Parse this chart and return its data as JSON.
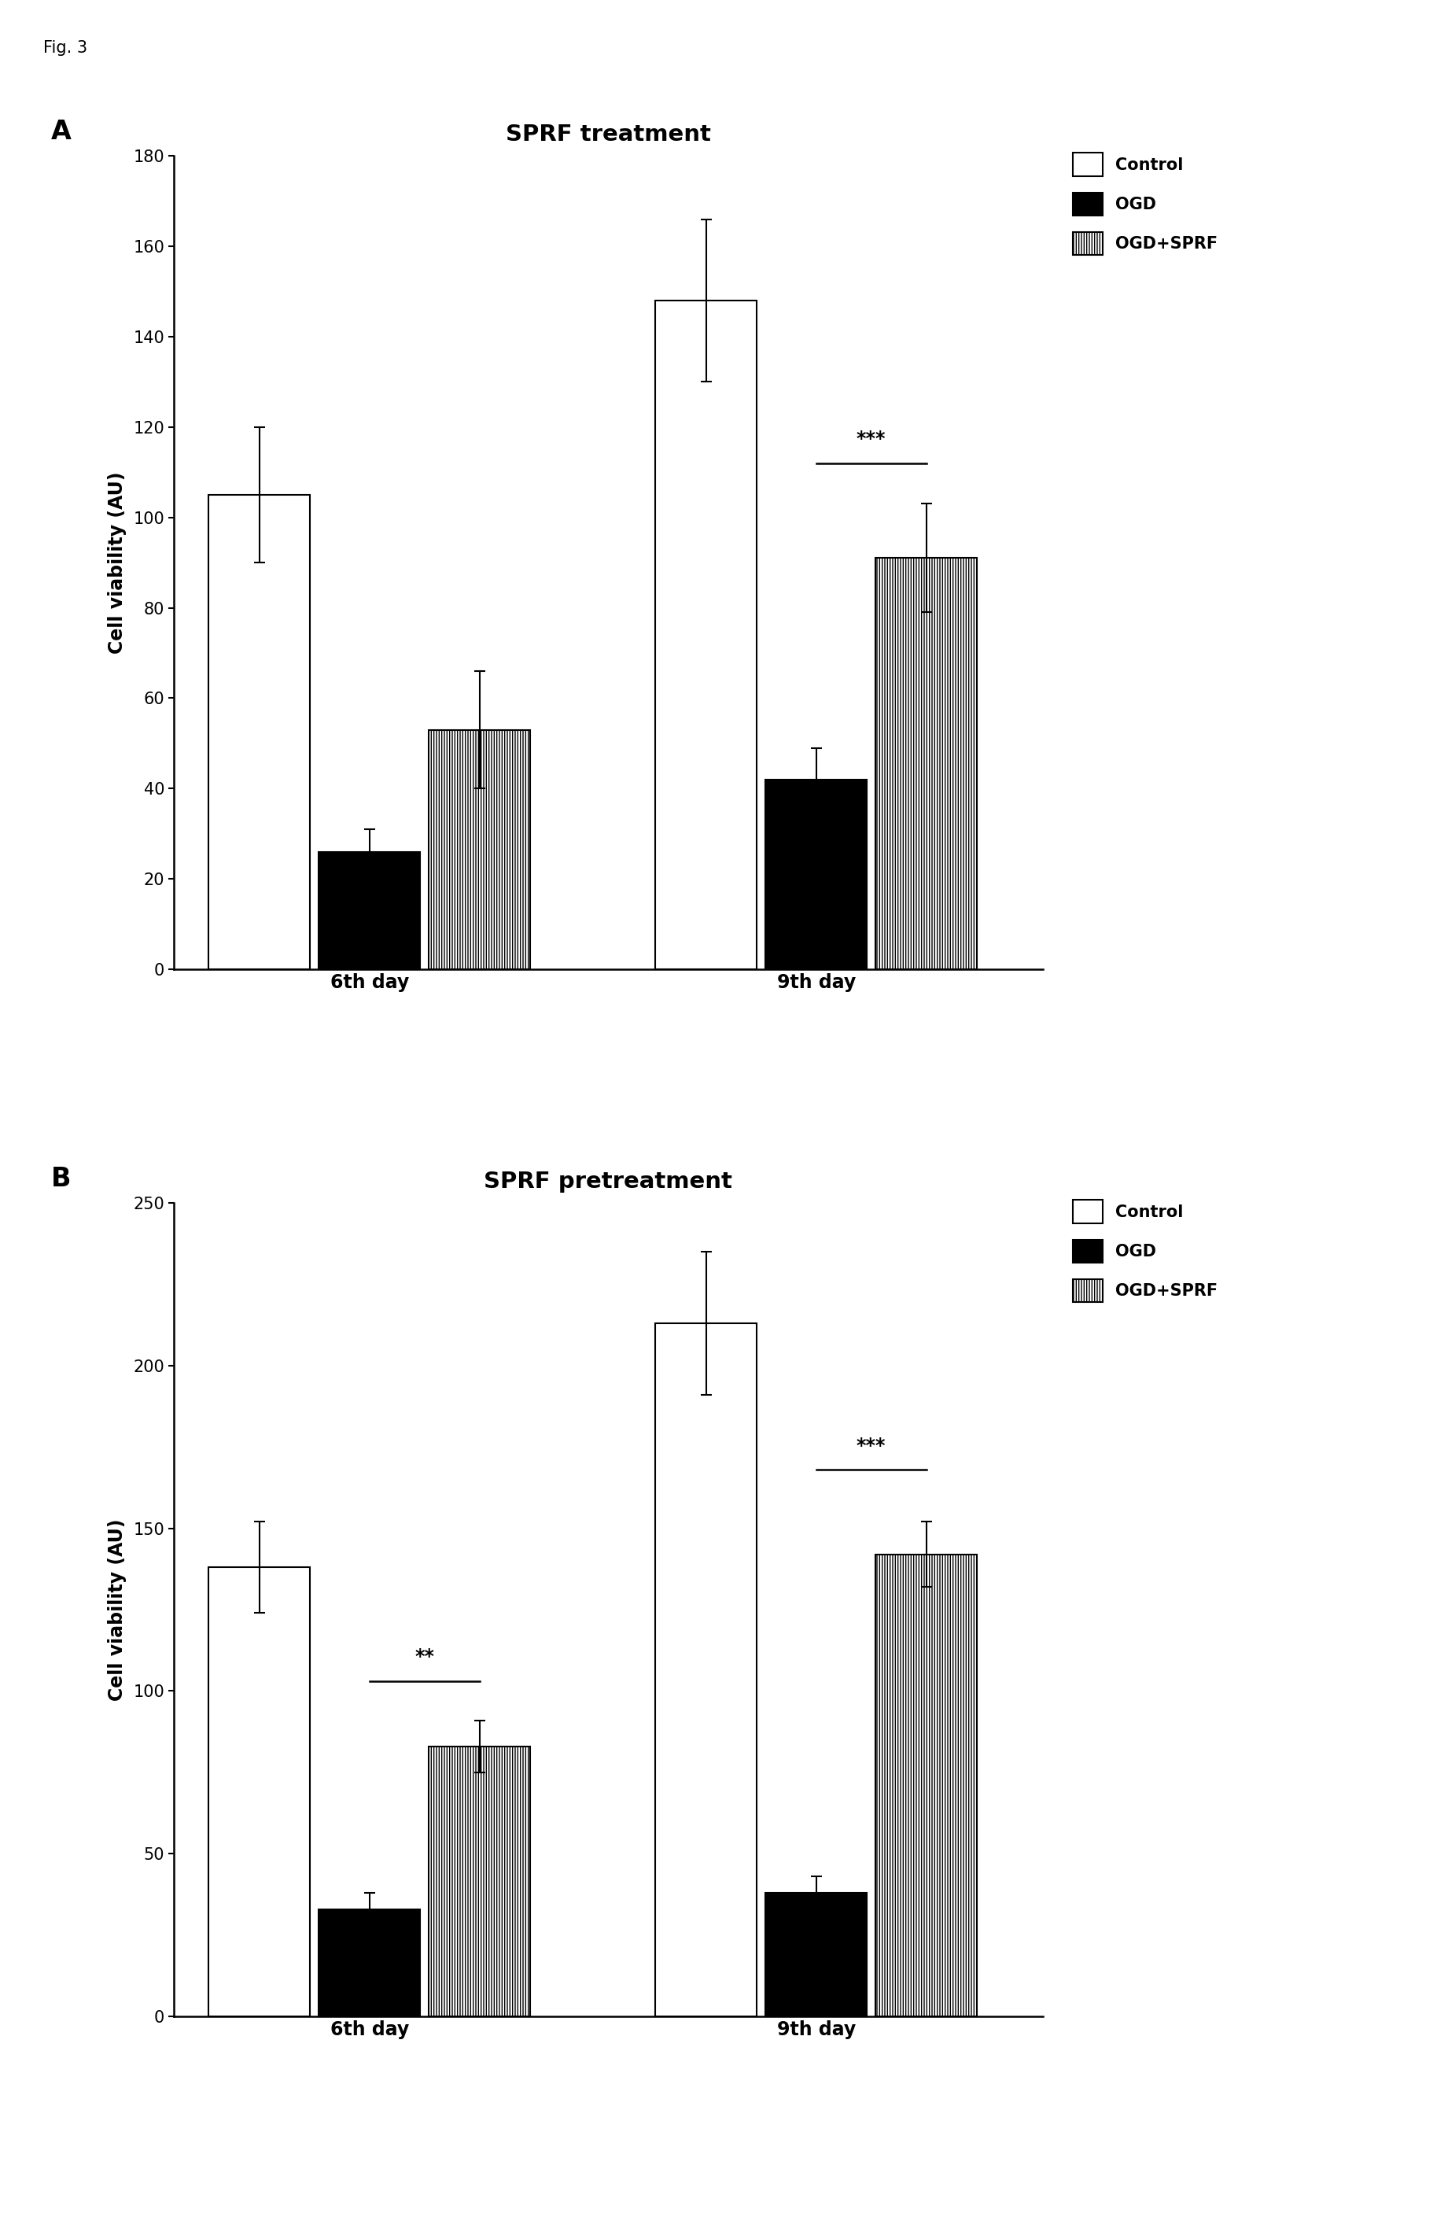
{
  "panel_A": {
    "title": "SPRF treatment",
    "groups": [
      "6th day",
      "9th day"
    ],
    "bars": {
      "Control": [
        105,
        148
      ],
      "OGD": [
        26,
        42
      ],
      "OGD+SPRF": [
        53,
        91
      ]
    },
    "errors": {
      "Control": [
        15,
        18
      ],
      "OGD": [
        5,
        7
      ],
      "OGD+SPRF": [
        13,
        12
      ]
    },
    "ylabel": "Cell viability (AU)",
    "ylim": [
      0,
      180
    ],
    "yticks": [
      0,
      20,
      40,
      60,
      80,
      100,
      120,
      140,
      160,
      180
    ],
    "sig_annotations": [
      {
        "day_idx": 1,
        "from_bar": 1,
        "to_bar": 2,
        "text": "***",
        "y": 112
      }
    ]
  },
  "panel_B": {
    "title": "SPRF pretreatment",
    "groups": [
      "6th day",
      "9th day"
    ],
    "bars": {
      "Control": [
        138,
        213
      ],
      "OGD": [
        33,
        38
      ],
      "OGD+SPRF": [
        83,
        142
      ]
    },
    "errors": {
      "Control": [
        14,
        22
      ],
      "OGD": [
        5,
        5
      ],
      "OGD+SPRF": [
        8,
        10
      ]
    },
    "ylabel": "Cell viability (AU)",
    "ylim": [
      0,
      250
    ],
    "yticks": [
      0,
      50,
      100,
      150,
      200,
      250
    ],
    "sig_annotations": [
      {
        "day_idx": 0,
        "from_bar": 1,
        "to_bar": 2,
        "text": "**",
        "y": 103
      },
      {
        "day_idx": 1,
        "from_bar": 1,
        "to_bar": 2,
        "text": "***",
        "y": 168
      }
    ]
  },
  "bar_width": 0.18,
  "group_centers": [
    0.32,
    1.05
  ],
  "xlim": [
    0.0,
    1.42
  ],
  "fig_label": "Fig. 3",
  "panel_labels": [
    "A",
    "B"
  ],
  "font_size_title": 21,
  "font_size_ylabel": 17,
  "font_size_tick": 15,
  "font_size_legend": 15,
  "font_size_panel": 24,
  "font_size_fig": 15,
  "font_size_sig": 17
}
